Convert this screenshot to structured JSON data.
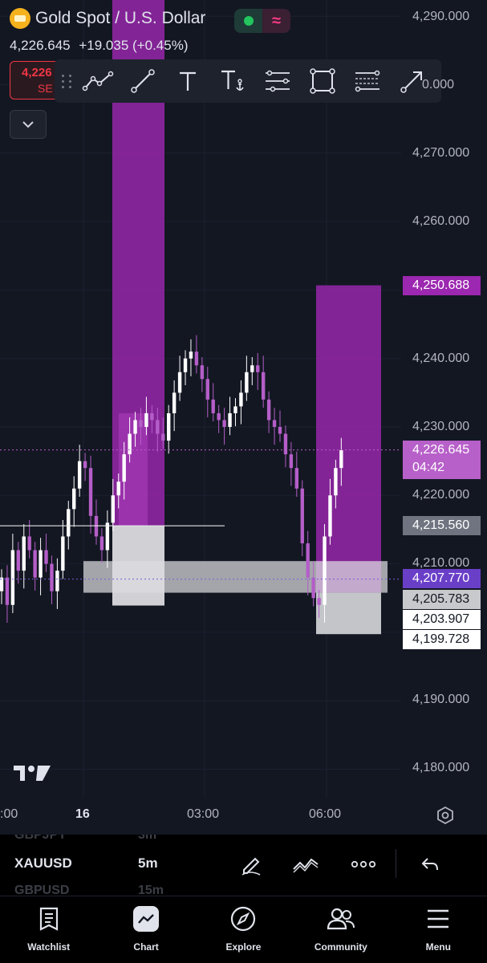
{
  "header": {
    "title": "Gold Spot / U.S. Dollar",
    "price": "4,226.645",
    "change": "+19.035 (+0.45%)"
  },
  "sell_button": {
    "price": "4,226",
    "label": "SE"
  },
  "drawing_toolbar": {
    "tools": [
      "trend-path-icon",
      "trend-line-icon",
      "text-icon",
      "anchored-text-icon",
      "parallel-channel-icon",
      "rectangle-icon",
      "fib-retracement-icon",
      "arrow-icon"
    ]
  },
  "price_axis": {
    "labels": [
      "4,290.000",
      "4,270.000",
      "4,260.000",
      "4,240.000",
      "4,230.000",
      "4,220.000",
      "4,210.000",
      "4,190.000",
      "4,180.000"
    ],
    "partial_label": "0.000"
  },
  "price_tags": [
    {
      "value": "4,250.688",
      "bg": "#9c27b0",
      "color": "#ffffff"
    },
    {
      "value": "4,226.645",
      "sub": "04:42",
      "bg": "#b760c9",
      "color": "#ffffff"
    },
    {
      "value": "4,215.560",
      "bg": "#707480",
      "color": "#ffffff"
    },
    {
      "value": "4,207.770",
      "bg": "#6a3fc8",
      "color": "#ffffff"
    },
    {
      "value": "4,205.783",
      "bg": "#c8c9cc",
      "color": "#131722"
    },
    {
      "value": "4,203.907",
      "bg": "#ffffff",
      "color": "#131722"
    },
    {
      "value": "4,199.728",
      "bg": "#ffffff",
      "color": "#131722"
    }
  ],
  "time_axis": {
    "labels": [
      ":00",
      "16",
      "03:00",
      "06:00"
    ]
  },
  "symbol_bar": {
    "ghost_above": {
      "symbol": "GBPJPY",
      "tf": "3m"
    },
    "symbol": "XAUUSD",
    "timeframe": "5m",
    "ghost_below": {
      "symbol": "GBPUSD",
      "tf": "15m"
    }
  },
  "bottom_nav": [
    {
      "label": "Watchlist",
      "icon": "watchlist-icon"
    },
    {
      "label": "Chart",
      "icon": "chart-icon"
    },
    {
      "label": "Explore",
      "icon": "compass-icon"
    },
    {
      "label": "Community",
      "icon": "community-icon"
    },
    {
      "label": "Menu",
      "icon": "menu-icon"
    }
  ],
  "colors": {
    "background": "#131722",
    "accent_purple": "#9c27b0",
    "candle_up": "#ffffff",
    "candle_down": "#b45ec8",
    "sell": "#f23645"
  },
  "chart_data": {
    "type": "candlestick",
    "symbol": "XAUUSD",
    "timeframe": "5m",
    "ylim": [
      4176,
      4296
    ],
    "current_price": 4226.645,
    "price_series": [
      4208,
      4204,
      4212,
      4209,
      4214,
      4212,
      4208,
      4212,
      4210,
      4206,
      4209,
      4214,
      4218,
      4221,
      4225,
      4224,
      4217,
      4214,
      4212,
      4216,
      4220,
      4222,
      4226,
      4229,
      4231,
      4230,
      4232,
      4231,
      4229,
      4228,
      4232,
      4235,
      4238,
      4240,
      4241,
      4239,
      4237,
      4234,
      4232,
      4231,
      4230,
      4232,
      4233,
      4235,
      4238,
      4239,
      4238,
      4234,
      4231,
      4230,
      4229,
      4226,
      4224,
      4221,
      4213,
      4208,
      4205,
      4204,
      4214,
      4220,
      4224,
      4226.6
    ],
    "zones": [
      {
        "label": "purple zone 1",
        "low": 4215.56,
        "high": 4296
      },
      {
        "label": "grey zone 1",
        "low": 4203.907,
        "high": 4215.56
      },
      {
        "label": "purple zone 2",
        "low": 4205.783,
        "high": 4250.688
      },
      {
        "label": "grey zone 2",
        "low": 4199.728,
        "high": 4205.783
      },
      {
        "label": "grey band",
        "low": 4205.783,
        "high": 4210.4
      }
    ],
    "horizontal_lines": [
      4215.56,
      4226.645,
      4207.77
    ]
  }
}
